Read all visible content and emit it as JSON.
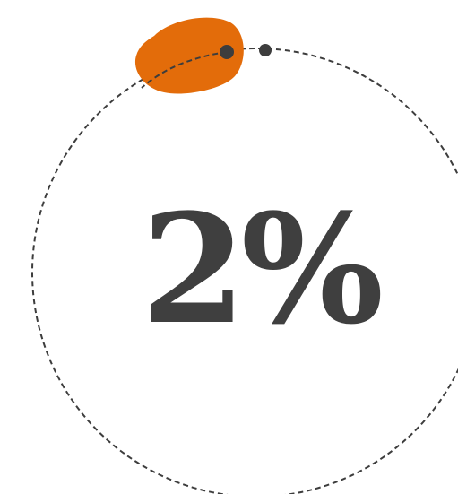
{
  "progress_graphic": {
    "percent_label": "2%",
    "progress_fraction": 0.02,
    "colors": {
      "ring_dash": "#3d3d3d",
      "marker_dot": "#3d3d3d",
      "accent_blob": "#e36c0a",
      "text": "#3f3f3f",
      "background": "#ffffff"
    }
  }
}
